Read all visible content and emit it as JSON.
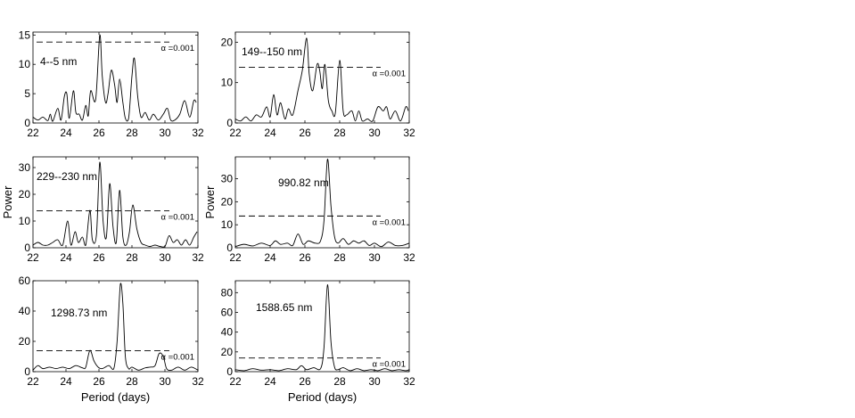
{
  "chart_data": [
    {
      "type": "line",
      "label": "4--5 nm",
      "threshold_label": "α =0.001",
      "threshold": 13.8,
      "xlim": [
        22,
        32
      ],
      "ylim": [
        0,
        15.5
      ],
      "xticks": [
        22,
        24,
        26,
        28,
        30,
        32
      ],
      "yticks": [
        0,
        5,
        10,
        15
      ],
      "xlabel": "",
      "ylabel": "",
      "x": [
        22.0,
        22.3,
        22.6,
        22.9,
        23.05,
        23.2,
        23.5,
        23.7,
        23.9,
        24.05,
        24.2,
        24.45,
        24.6,
        24.8,
        25.0,
        25.2,
        25.35,
        25.5,
        25.8,
        26.05,
        26.2,
        26.4,
        26.55,
        26.75,
        26.95,
        27.1,
        27.25,
        27.45,
        27.6,
        27.8,
        28.0,
        28.15,
        28.35,
        28.55,
        28.8,
        29.05,
        29.3,
        29.6,
        29.9,
        30.15,
        30.35,
        30.6,
        30.9,
        31.2,
        31.5,
        31.75,
        31.9
      ],
      "values": [
        1.0,
        0.5,
        1.0,
        0.4,
        1.5,
        0.3,
        2.5,
        0.5,
        4.5,
        5.0,
        0.8,
        5.5,
        1.8,
        1.5,
        0.5,
        3.0,
        1.2,
        5.5,
        4.0,
        15.0,
        8.0,
        3.5,
        5.0,
        9.0,
        6.5,
        3.5,
        7.5,
        3.5,
        0.8,
        0.8,
        8.0,
        11.0,
        4.5,
        1.0,
        1.8,
        0.5,
        1.5,
        0.5,
        1.5,
        2.5,
        0.5,
        0.5,
        1.5,
        3.8,
        1.0,
        3.8,
        3.5
      ]
    },
    {
      "type": "line",
      "label": "149--150 nm",
      "threshold_label": "α =0.001",
      "threshold": 13.8,
      "xlim": [
        22,
        32
      ],
      "ylim": [
        0,
        22.5
      ],
      "xticks": [
        22,
        24,
        26,
        28,
        30,
        32
      ],
      "yticks": [
        0,
        10,
        20
      ],
      "xlabel": "",
      "ylabel": "",
      "x": [
        22.0,
        22.3,
        22.6,
        22.9,
        23.2,
        23.5,
        23.8,
        24.0,
        24.2,
        24.4,
        24.6,
        24.85,
        25.05,
        25.3,
        25.6,
        25.85,
        26.1,
        26.25,
        26.45,
        26.7,
        26.85,
        27.0,
        27.15,
        27.35,
        27.55,
        27.75,
        28.0,
        28.2,
        28.4,
        28.7,
        28.9,
        29.1,
        29.3,
        29.6,
        29.9,
        30.2,
        30.5,
        30.7,
        30.9,
        31.2,
        31.5,
        31.8,
        31.95
      ],
      "values": [
        1.0,
        0.5,
        1.5,
        0.5,
        2.0,
        1.5,
        4.0,
        1.5,
        7.0,
        2.0,
        5.0,
        1.0,
        3.5,
        2.0,
        8.0,
        13.0,
        21.0,
        12.0,
        8.0,
        14.5,
        13.0,
        8.5,
        14.5,
        5.5,
        3.0,
        2.5,
        15.5,
        3.0,
        2.0,
        3.0,
        0.5,
        3.0,
        0.5,
        1.0,
        0.5,
        4.0,
        3.0,
        4.0,
        1.0,
        3.0,
        0.5,
        4.0,
        3.0
      ]
    },
    {
      "type": "line",
      "label": "229--230 nm",
      "threshold_label": "α =0.001",
      "threshold": 13.8,
      "xlim": [
        22,
        32
      ],
      "ylim": [
        0,
        34
      ],
      "xticks": [
        22,
        24,
        26,
        28,
        30,
        32
      ],
      "yticks": [
        0,
        10,
        20,
        30
      ],
      "xlabel": "",
      "ylabel": "Power",
      "x": [
        22.0,
        22.3,
        22.6,
        22.9,
        23.2,
        23.5,
        23.8,
        24.1,
        24.3,
        24.55,
        24.75,
        25.0,
        25.2,
        25.45,
        25.6,
        25.85,
        26.05,
        26.25,
        26.45,
        26.65,
        26.85,
        27.05,
        27.25,
        27.45,
        27.65,
        27.85,
        28.05,
        28.3,
        28.55,
        28.8,
        29.1,
        29.4,
        29.7,
        30.0,
        30.25,
        30.5,
        30.75,
        31.0,
        31.25,
        31.5,
        31.75,
        31.95
      ],
      "values": [
        1.0,
        2.0,
        1.0,
        1.0,
        2.0,
        3.0,
        1.0,
        10.0,
        1.0,
        6.0,
        2.0,
        4.0,
        1.0,
        14.0,
        3.0,
        5.0,
        32.0,
        10.0,
        4.0,
        24.0,
        8.0,
        2.0,
        21.5,
        4.0,
        1.0,
        6.0,
        16.0,
        7.0,
        2.0,
        1.0,
        0.5,
        1.0,
        0.5,
        0.5,
        4.5,
        2.0,
        3.0,
        1.0,
        3.0,
        1.0,
        4.0,
        6.0
      ]
    },
    {
      "type": "line",
      "label": "990.82 nm",
      "threshold_label": "α =0.001",
      "threshold": 13.8,
      "xlim": [
        22,
        32
      ],
      "ylim": [
        0,
        39.5
      ],
      "xticks": [
        22,
        24,
        26,
        28,
        30,
        32
      ],
      "yticks": [
        0,
        10,
        20,
        30
      ],
      "xlabel": "",
      "ylabel": "Power",
      "x": [
        22.0,
        22.5,
        23.0,
        23.5,
        24.0,
        24.3,
        24.6,
        25.0,
        25.3,
        25.6,
        25.9,
        26.2,
        26.6,
        26.9,
        27.1,
        27.3,
        27.5,
        27.7,
        27.9,
        28.2,
        28.5,
        28.8,
        29.1,
        29.4,
        29.7,
        30.0,
        30.4,
        30.8,
        31.2,
        31.6,
        32.0
      ],
      "values": [
        0.5,
        1.5,
        0.8,
        2.0,
        1.0,
        3.0,
        1.5,
        2.0,
        1.0,
        6.0,
        1.5,
        3.0,
        2.0,
        3.0,
        12.0,
        38.5,
        18.0,
        5.0,
        2.0,
        4.0,
        1.5,
        3.0,
        2.0,
        3.0,
        1.0,
        2.0,
        0.5,
        2.5,
        1.0,
        1.0,
        2.0
      ]
    },
    {
      "type": "line",
      "label": "1298.73 nm",
      "threshold_label": "α =0.001",
      "threshold": 13.8,
      "xlim": [
        22,
        32
      ],
      "ylim": [
        0,
        60
      ],
      "xticks": [
        22,
        24,
        26,
        28,
        30,
        32
      ],
      "yticks": [
        0,
        20,
        40,
        60
      ],
      "xlabel": "Period (days)",
      "ylabel": "",
      "x": [
        22.0,
        22.3,
        22.6,
        23.0,
        23.4,
        23.8,
        24.2,
        24.6,
        25.0,
        25.2,
        25.45,
        25.7,
        25.95,
        26.2,
        26.6,
        26.9,
        27.1,
        27.3,
        27.45,
        27.6,
        27.8,
        28.0,
        28.4,
        28.8,
        29.1,
        29.4,
        29.65,
        29.9,
        30.1,
        30.4,
        30.8,
        31.2,
        31.6,
        32.0
      ],
      "values": [
        1.0,
        4.0,
        2.0,
        3.0,
        2.0,
        3.0,
        2.0,
        4.0,
        2.5,
        3.0,
        14.0,
        7.0,
        3.0,
        2.0,
        4.0,
        2.0,
        20.0,
        58.0,
        45.0,
        10.0,
        2.0,
        3.0,
        1.0,
        2.5,
        3.0,
        4.0,
        12.0,
        10.0,
        2.0,
        1.0,
        3.0,
        1.0,
        3.0,
        1.0
      ]
    },
    {
      "type": "line",
      "label": "1588.65 nm",
      "threshold_label": "α =0.001",
      "threshold": 13.8,
      "xlim": [
        22,
        32
      ],
      "ylim": [
        0,
        92
      ],
      "xticks": [
        22,
        24,
        26,
        28,
        30,
        32
      ],
      "yticks": [
        0,
        20,
        40,
        60,
        80
      ],
      "xlabel": "Period (days)",
      "ylabel": "",
      "x": [
        22.0,
        22.5,
        23.0,
        23.5,
        24.0,
        24.5,
        25.0,
        25.5,
        25.8,
        26.1,
        26.5,
        26.9,
        27.1,
        27.3,
        27.5,
        27.7,
        27.9,
        28.2,
        28.6,
        29.0,
        29.4,
        29.8,
        30.2,
        30.6,
        31.0,
        31.4,
        31.8,
        32.0
      ],
      "values": [
        2.0,
        1.0,
        3.0,
        1.5,
        2.0,
        1.0,
        3.0,
        2.0,
        6.0,
        2.0,
        4.0,
        3.0,
        25.0,
        88.0,
        30.0,
        5.0,
        2.0,
        4.0,
        1.0,
        3.0,
        1.0,
        2.0,
        1.0,
        3.0,
        1.0,
        2.0,
        1.0,
        2.0
      ]
    }
  ]
}
